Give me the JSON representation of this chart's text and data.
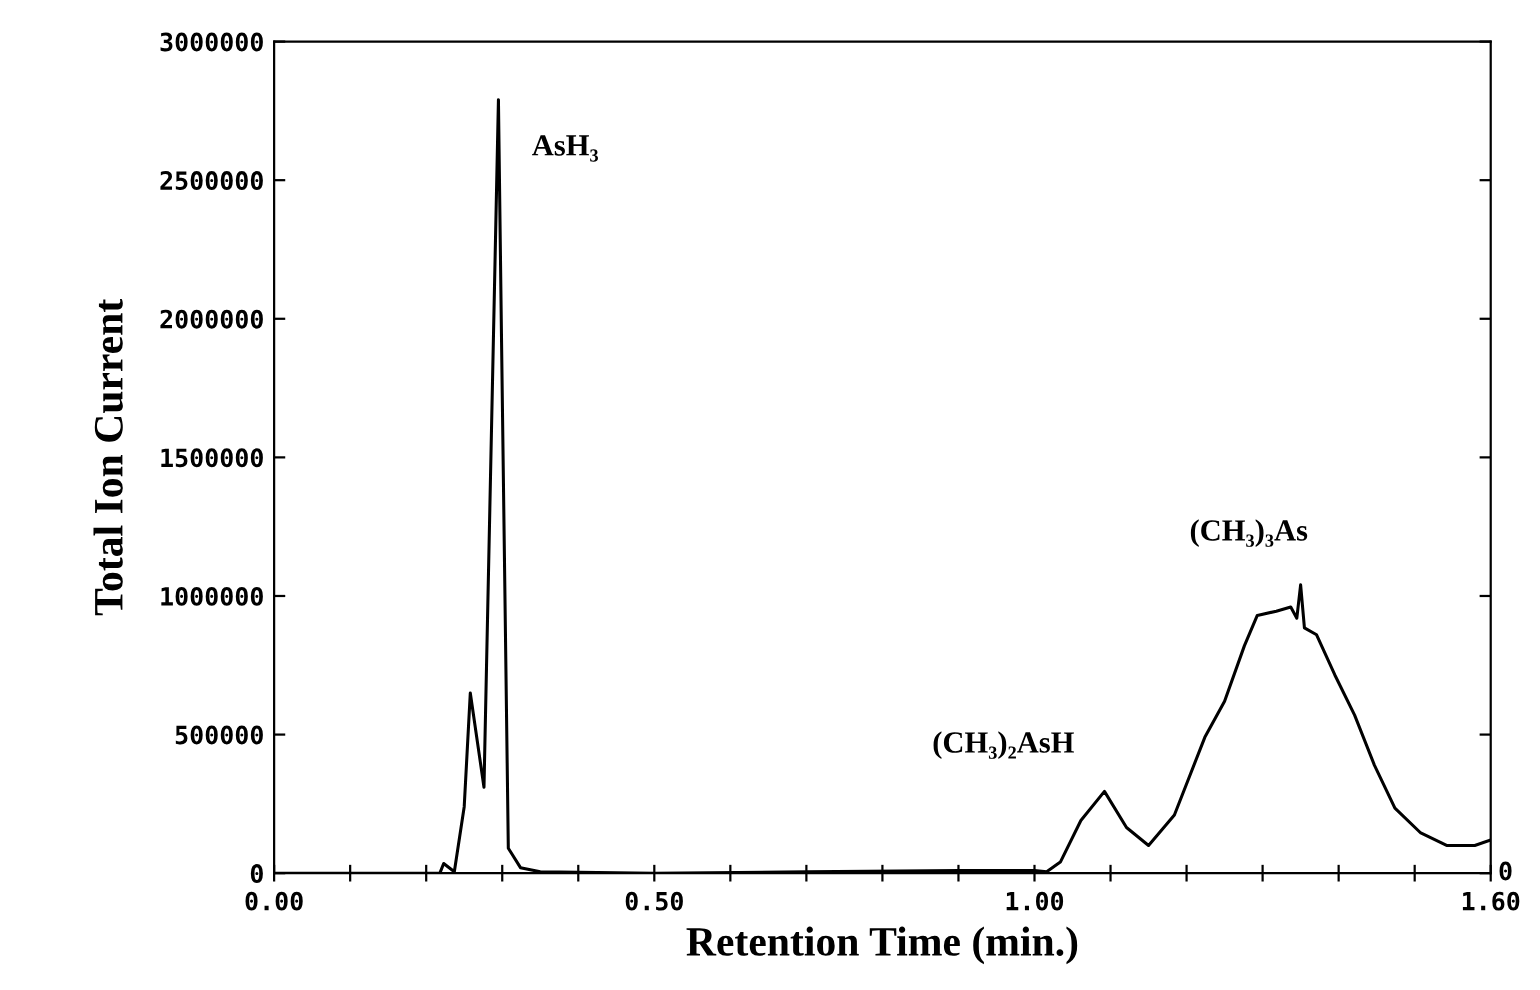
{
  "chart_data": {
    "type": "line",
    "xlabel": "Retention Time (min.)",
    "ylabel": "Total Ion Current",
    "xlim": [
      0,
      1.6
    ],
    "ylim": [
      0,
      3000000
    ],
    "xticks": [
      {
        "value": 0,
        "label": "0.00"
      },
      {
        "value": 0.1,
        "label": null
      },
      {
        "value": 0.2,
        "label": null
      },
      {
        "value": 0.3,
        "label": null
      },
      {
        "value": 0.4,
        "label": null
      },
      {
        "value": 0.5,
        "label": "0.50"
      },
      {
        "value": 0.6,
        "label": null
      },
      {
        "value": 0.7,
        "label": null
      },
      {
        "value": 0.8,
        "label": null
      },
      {
        "value": 0.9,
        "label": null
      },
      {
        "value": 1.0,
        "label": "1.00"
      },
      {
        "value": 1.1,
        "label": null
      },
      {
        "value": 1.2,
        "label": null
      },
      {
        "value": 1.3,
        "label": null
      },
      {
        "value": 1.4,
        "label": null
      },
      {
        "value": 1.5,
        "label": null
      },
      {
        "value": 1.6,
        "label": "1.60"
      }
    ],
    "yticks": [
      0,
      500000,
      1000000,
      1500000,
      2000000,
      2500000,
      3000000
    ],
    "grid": false,
    "legend": false,
    "marker": "none",
    "line_style": "solid",
    "annotations": [
      {
        "text": "AsH₃",
        "x": 0.295,
        "y": 2790000
      },
      {
        "text": "(CH₃)₂AsH",
        "x": 1.092,
        "y": 295000
      },
      {
        "text": "(CH₃)₃As",
        "x": 1.35,
        "y": 1040000
      },
      "0"
    ],
    "series": [
      {
        "color": "#000000",
        "x": [
          0,
          0.2,
          0.218,
          0.223,
          0.237,
          0.25,
          0.258,
          0.276,
          0.295,
          0.299,
          0.308,
          0.324,
          0.35,
          0.5,
          0.7,
          0.9,
          1.0,
          1.016,
          1.034,
          1.061,
          1.092,
          1.121,
          1.15,
          1.184,
          1.224,
          1.25,
          1.276,
          1.293,
          1.318,
          1.337,
          1.345,
          1.35,
          1.355,
          1.371,
          1.395,
          1.421,
          1.447,
          1.474,
          1.508,
          1.542,
          1.579,
          1.6
        ],
        "values": [
          0,
          0,
          0,
          35000,
          5000,
          240000,
          650000,
          310000,
          2790000,
          1940000,
          90000,
          20000,
          5000,
          0,
          5000,
          10000,
          10000,
          5000,
          40000,
          190000,
          295000,
          165000,
          100000,
          210000,
          490000,
          620000,
          820000,
          930000,
          945000,
          960000,
          920000,
          1040000,
          885000,
          860000,
          715000,
          570000,
          390000,
          235000,
          145000,
          100000,
          100000,
          120000
        ]
      }
    ]
  }
}
